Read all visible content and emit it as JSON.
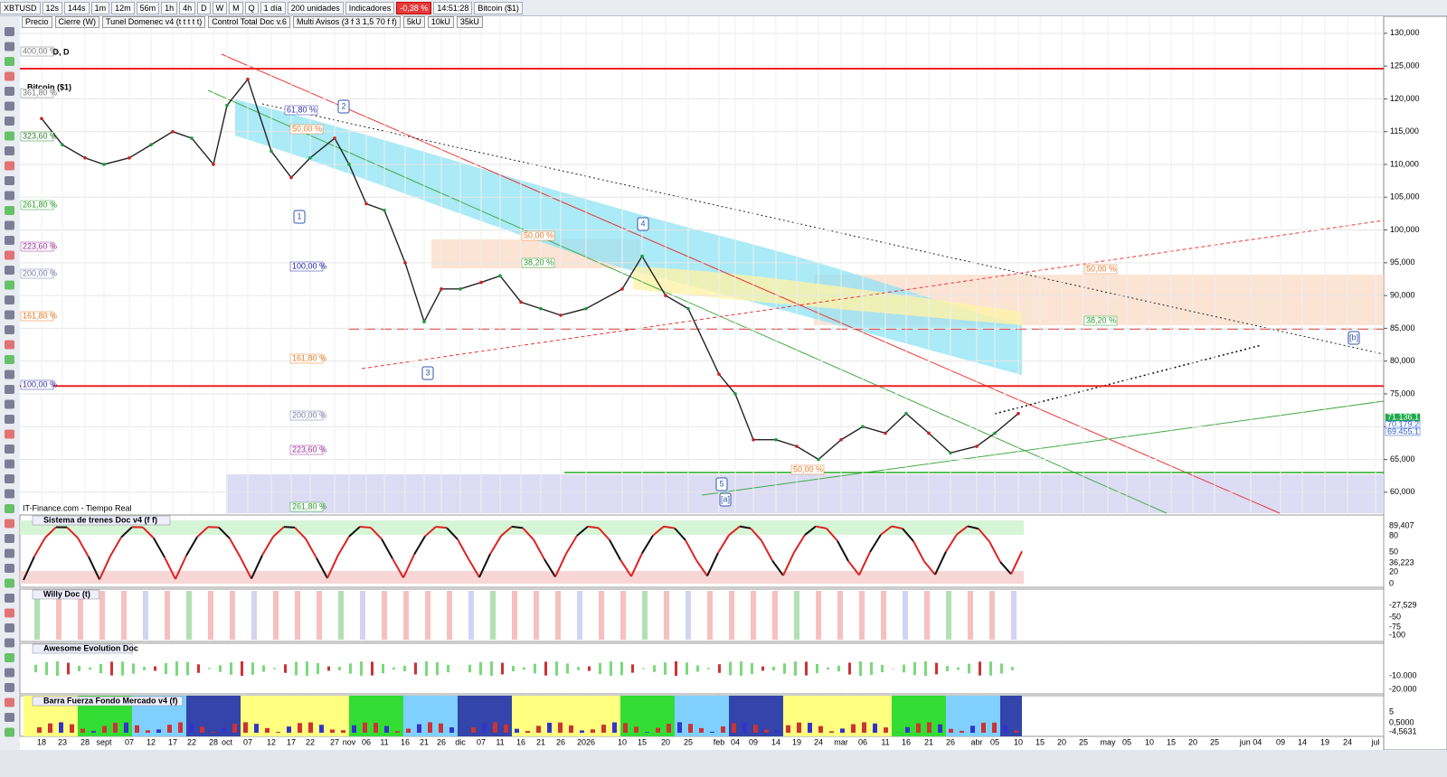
{
  "toolbar": {
    "symbol": "XBTUSD",
    "buttons": [
      "12s",
      "144s",
      "1m",
      "12m",
      "56m",
      "1h",
      "4h",
      "D",
      "W",
      "M",
      "Q"
    ],
    "period": "1 día",
    "units": "200 unidades",
    "indicators": "Indicadores",
    "change": "-0,38 %",
    "time": "14:51:28",
    "name": "Bitcoin ($1)"
  },
  "legend": [
    "Precio",
    "Cierre (W)",
    "Tunel Domenec v4 (t t t t t)",
    "Control Total Doc v.6",
    "Multi Avisos (3 f 3 1,5 70 f f)",
    "5kU",
    "10kU",
    "35kU"
  ],
  "chart_data": {
    "type": "line",
    "title": "XBTUSD, D",
    "subtitle": "Bitcoin ($1)",
    "source": "IT-Finance.com - Tiempo Real",
    "categories": [
      "18",
      "23",
      "28",
      "sept",
      "07",
      "12",
      "17",
      "22",
      "28",
      "oct",
      "07",
      "12",
      "17",
      "22",
      "27",
      "nov",
      "06",
      "11",
      "16",
      "21",
      "26",
      "dic",
      "07",
      "11",
      "16",
      "21",
      "26",
      "2026",
      "10",
      "15",
      "20",
      "25",
      "feb",
      "04",
      "09",
      "14",
      "19",
      "24",
      "mar",
      "06",
      "11",
      "16",
      "21",
      "26",
      "abr",
      "05",
      "10",
      "15",
      "20",
      "25",
      "may",
      "05",
      "10",
      "15",
      "20",
      "25",
      "jun 04",
      "09",
      "14",
      "19",
      "24",
      "jul"
    ],
    "values": [
      117,
      113,
      111,
      110,
      111,
      113,
      115,
      114,
      110,
      119,
      123,
      112,
      108,
      111,
      114,
      110,
      104,
      103,
      95,
      86,
      91,
      91,
      92,
      93,
      89,
      88,
      87,
      88,
      91,
      96,
      90,
      88,
      78,
      75,
      68,
      68,
      67,
      65,
      68,
      70,
      69,
      72,
      69,
      66,
      67,
      69,
      72,
      null,
      null,
      null,
      null,
      null,
      null,
      null,
      null,
      null,
      null,
      null,
      null,
      null,
      null,
      null
    ],
    "color": "#222222",
    "ylim": [
      56.8,
      132.6
    ],
    "yticks": [
      {
        "value": 60,
        "label": "60,000"
      },
      {
        "value": 65,
        "label": "65,000"
      },
      {
        "value": 70,
        "label": "70,000"
      },
      {
        "value": 75,
        "label": "75,000"
      },
      {
        "value": 80,
        "label": "80,000"
      },
      {
        "value": 85,
        "label": "85,000"
      },
      {
        "value": 90,
        "label": "90,000"
      },
      {
        "value": 95,
        "label": "95,000"
      },
      {
        "value": 100,
        "label": "100,000"
      },
      {
        "value": 105,
        "label": "105,000"
      },
      {
        "value": 110,
        "label": "110,000"
      },
      {
        "value": 115,
        "label": "115,000"
      },
      {
        "value": 120,
        "label": "120,000"
      },
      {
        "value": 125,
        "label": "125,000"
      },
      {
        "value": 130,
        "label": "130,000"
      }
    ],
    "grid": true,
    "levels": [
      124.6,
      76.2
    ],
    "price_tags": [
      "71.136,1",
      "70.179,2",
      "69.455,1"
    ],
    "annotations": [
      "400,00 %",
      "361,80 %",
      "323,60 %",
      "261,80 %",
      "223,60 %",
      "200,00 %",
      "161,80 %",
      "100,00 %",
      "61,80 %",
      "50,00 %",
      "100,00 %",
      "161,80 %",
      "200,00 %",
      "223,60 %",
      "261,80 %",
      "50,00 %",
      "38,20 %",
      "50,00 %",
      "50,00 %",
      "38,20 %"
    ],
    "waves": [
      "1",
      "2",
      "3",
      "4",
      "5",
      "[a]",
      "[b]"
    ]
  },
  "panels": [
    {
      "title": "Sistema de trenes Doc v4 (f f)",
      "axis": [
        "89,407",
        "80",
        "50",
        "36,223",
        "20",
        "0"
      ]
    },
    {
      "title": "Willy Doc (t)",
      "axis": [
        "-27,529",
        "-50",
        "-75",
        "-100"
      ]
    },
    {
      "title": "Awesome Evolution Doc",
      "axis": [
        "-10.000",
        "-20.000"
      ]
    },
    {
      "title": "Barra Fuerza Fondo Mercado v4 (f)",
      "axis": [
        "5",
        "0,5000",
        "-4,5631"
      ]
    }
  ]
}
